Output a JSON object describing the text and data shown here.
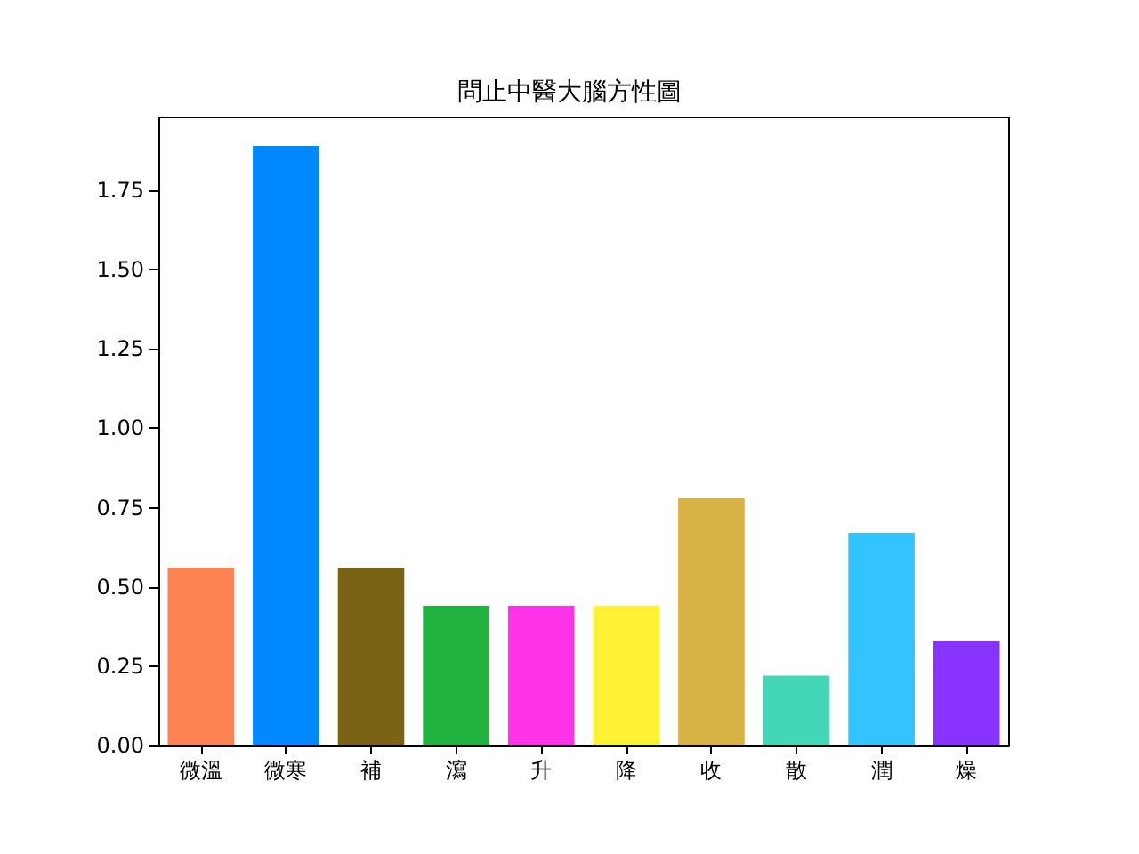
{
  "chart_data": {
    "type": "bar",
    "title": "問止中醫大腦方性圖",
    "categories": [
      "微溫",
      "微寒",
      "補",
      "瀉",
      "升",
      "降",
      "收",
      "散",
      "潤",
      "燥"
    ],
    "values": [
      0.56,
      1.89,
      0.56,
      0.44,
      0.44,
      0.44,
      0.78,
      0.22,
      0.67,
      0.33
    ],
    "colors": [
      "#ff8352",
      "#0088ff",
      "#7b6316",
      "#21b240",
      "#ff33e8",
      "#fff133",
      "#d8b245",
      "#43d7b8",
      "#33c4ff",
      "#8833ff"
    ],
    "ylim": [
      0,
      1.98
    ],
    "yticks": [
      {
        "value": 0,
        "label": "0.00"
      },
      {
        "value": 0.25,
        "label": "0.25"
      },
      {
        "value": 0.5,
        "label": "0.50"
      },
      {
        "value": 0.75,
        "label": "0.75"
      },
      {
        "value": 1,
        "label": "1.00"
      },
      {
        "value": 1.25,
        "label": "1.25"
      },
      {
        "value": 1.5,
        "label": "1.50"
      },
      {
        "value": 1.75,
        "label": "1.75"
      }
    ],
    "grid": false
  }
}
